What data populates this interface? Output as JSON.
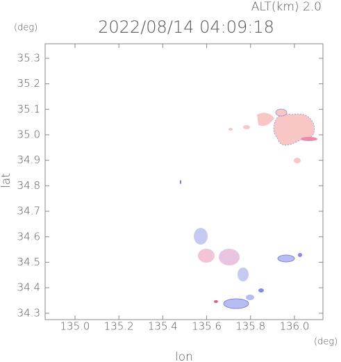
{
  "chart_data": {
    "type": "map",
    "title": "2022/08/14 04:09:18",
    "annotation": "ALT(km) 2.0",
    "xlabel": "lon",
    "ylabel": "lat",
    "xunit": "(deg)",
    "yunit": "(deg)",
    "xlim": [
      134.864,
      136.13
    ],
    "ylim": [
      34.275,
      35.357
    ],
    "xticks": [
      {
        "value": 135,
        "label": "135.0"
      },
      135.2,
      135.4,
      135.6,
      135.8,
      {
        "value": 136,
        "label": "136.0"
      }
    ],
    "yticks": [
      34.3,
      34.4,
      34.5,
      34.6,
      34.7,
      34.8,
      34.9,
      {
        "value": 35,
        "label": "35.0"
      },
      35.1,
      35.2,
      35.3
    ]
  }
}
